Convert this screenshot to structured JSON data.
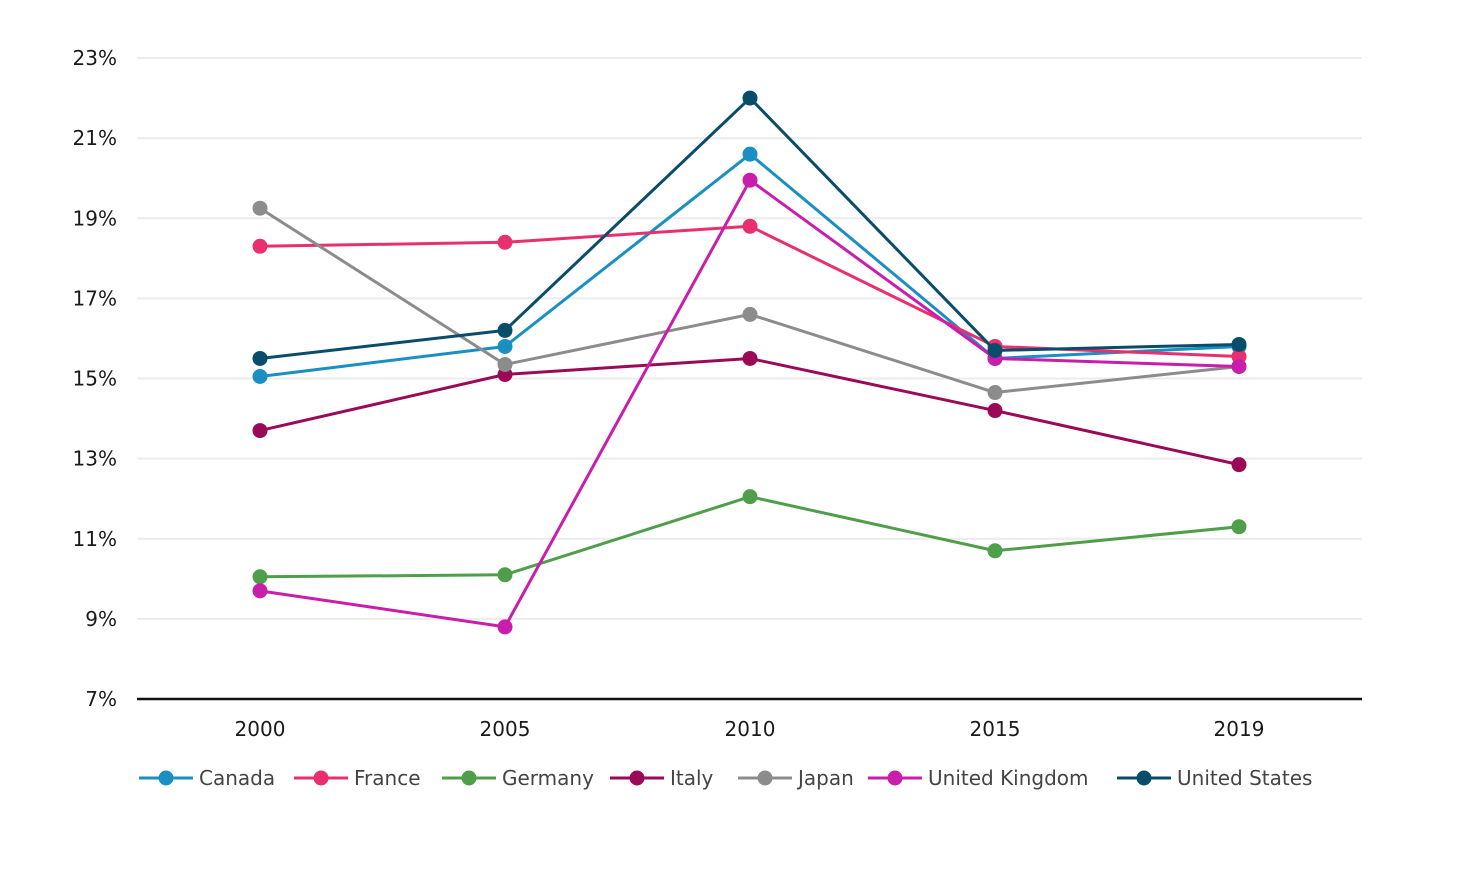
{
  "chart_data": {
    "type": "line",
    "title": "",
    "xlabel": "",
    "ylabel": "",
    "x": [
      "2000",
      "2005",
      "2010",
      "2015",
      "2019"
    ],
    "y_ticks": [
      "7%",
      "9%",
      "11%",
      "13%",
      "15%",
      "17%",
      "19%",
      "21%",
      "23%"
    ],
    "ylim": [
      7,
      23
    ],
    "grid": true,
    "legend_position": "bottom",
    "series": [
      {
        "name": "Canada",
        "color": "#1a8fc2",
        "values": [
          15.05,
          15.8,
          20.6,
          15.5,
          15.8
        ]
      },
      {
        "name": "France",
        "color": "#e8306f",
        "values": [
          18.3,
          18.4,
          18.8,
          15.8,
          15.55
        ]
      },
      {
        "name": "Germany",
        "color": "#4f9e4a",
        "values": [
          10.05,
          10.1,
          12.05,
          10.7,
          11.3
        ]
      },
      {
        "name": "Italy",
        "color": "#9b0a57",
        "values": [
          13.7,
          15.1,
          15.5,
          14.2,
          12.85
        ]
      },
      {
        "name": "Japan",
        "color": "#8c8c8c",
        "values": [
          19.25,
          15.35,
          16.6,
          14.65,
          15.3
        ]
      },
      {
        "name": "United Kingdom",
        "color": "#c81eab",
        "values": [
          9.7,
          8.8,
          19.95,
          15.5,
          15.3
        ]
      },
      {
        "name": "United States",
        "color": "#0a4d6b",
        "values": [
          15.5,
          16.2,
          22.0,
          15.7,
          15.85
        ]
      }
    ]
  }
}
